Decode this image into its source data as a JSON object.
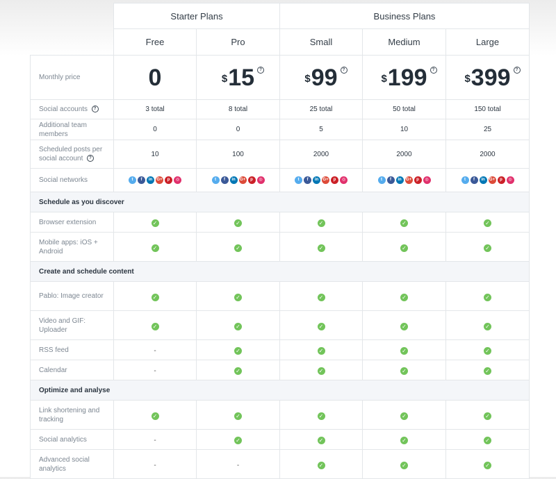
{
  "groups": {
    "starter": "Starter Plans",
    "business": "Business Plans"
  },
  "plans": [
    "Free",
    "Pro",
    "Small",
    "Medium",
    "Large"
  ],
  "currency_symbol": "$",
  "help_glyph": "?",
  "check_glyph": "✓",
  "dash_glyph": "-",
  "prices": [
    "0",
    "15",
    "99",
    "199",
    "399"
  ],
  "rows": {
    "monthly_price": "Monthly price",
    "social_accounts": {
      "label": "Social accounts",
      "values": [
        "3 total",
        "8 total",
        "25 total",
        "50 total",
        "150 total"
      ]
    },
    "team_members": {
      "label": "Additional team members",
      "values": [
        "0",
        "0",
        "5",
        "10",
        "25"
      ]
    },
    "scheduled_posts": {
      "label": "Scheduled posts per social account",
      "values": [
        "10",
        "100",
        "2000",
        "2000",
        "2000"
      ]
    },
    "social_networks": "Social networks"
  },
  "network_icons": [
    {
      "name": "twitter-icon",
      "glyph": "t",
      "color": "#55acee"
    },
    {
      "name": "facebook-icon",
      "glyph": "f",
      "color": "#3b5998"
    },
    {
      "name": "linkedin-icon",
      "glyph": "in",
      "color": "#0077b5"
    },
    {
      "name": "google-plus-icon",
      "glyph": "G+",
      "color": "#dd4b39"
    },
    {
      "name": "pinterest-icon",
      "glyph": "p",
      "color": "#cb2027"
    },
    {
      "name": "instagram-icon",
      "glyph": "◎",
      "color": "#e1306c"
    }
  ],
  "sections": [
    {
      "title": "Schedule as you discover",
      "features": [
        {
          "label": "Browser extension",
          "values": [
            true,
            true,
            true,
            true,
            true
          ]
        },
        {
          "label": "Mobile apps: iOS + Android",
          "values": [
            true,
            true,
            true,
            true,
            true
          ]
        }
      ]
    },
    {
      "title": "Create and schedule content",
      "features": [
        {
          "label": "Pablo: Image creator",
          "values": [
            true,
            true,
            true,
            true,
            true
          ]
        },
        {
          "label": "Video and GIF: Uploader",
          "values": [
            true,
            true,
            true,
            true,
            true
          ]
        },
        {
          "label": "RSS feed",
          "values": [
            false,
            true,
            true,
            true,
            true
          ]
        },
        {
          "label": "Calendar",
          "values": [
            false,
            true,
            true,
            true,
            true
          ]
        }
      ]
    },
    {
      "title": "Optimize and analyse",
      "features": [
        {
          "label": "Link shortening and tracking",
          "values": [
            true,
            true,
            true,
            true,
            true
          ]
        },
        {
          "label": "Social analytics",
          "values": [
            false,
            true,
            true,
            true,
            true
          ]
        },
        {
          "label": "Advanced social analytics",
          "values": [
            false,
            false,
            true,
            true,
            true
          ]
        }
      ]
    }
  ]
}
